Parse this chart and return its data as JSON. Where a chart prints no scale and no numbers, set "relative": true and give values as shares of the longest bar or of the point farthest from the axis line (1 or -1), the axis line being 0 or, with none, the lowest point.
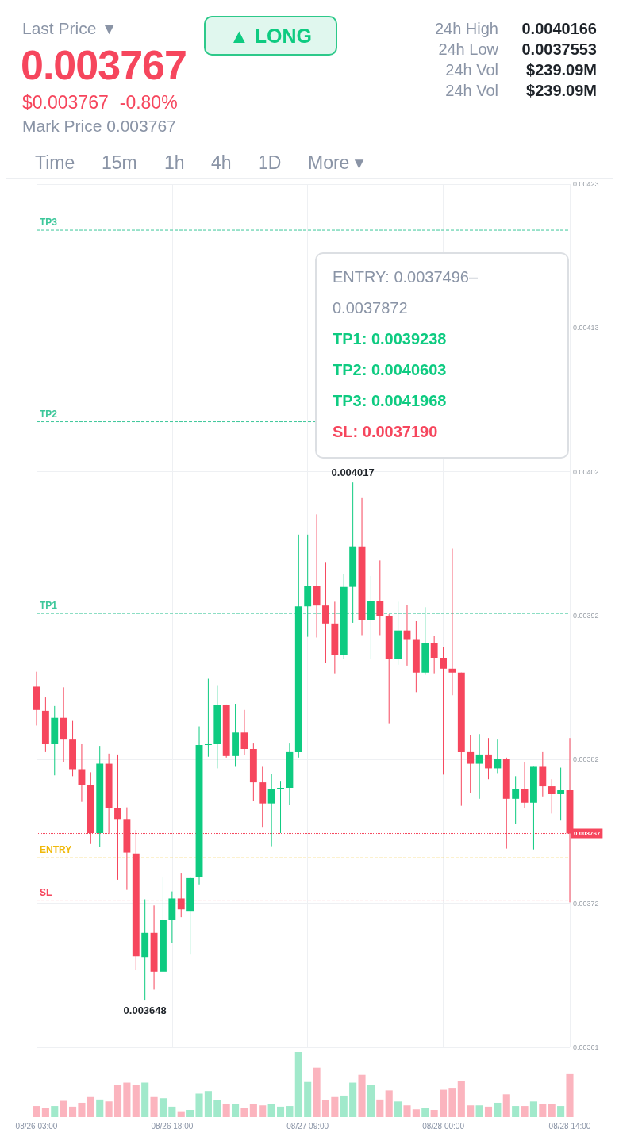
{
  "chart_data": [
    {
      "type": "other",
      "annotations": [
        "Last Price ▼",
        "0.003767",
        "$0.003767",
        "-0.80%",
        "Mark Price 0.003767",
        "▲ LONG",
        "24h High",
        "0.0040166",
        "24h Low",
        "0.0037553",
        "24h Vol",
        "$239.09M",
        "24h Vol",
        "$239.09M",
        "Time",
        "15m",
        "1h",
        "4h",
        "1D",
        "More ▾"
      ]
    },
    {
      "type": "candlestick",
      "categories": [
        "08/26 03:00",
        null,
        null,
        null,
        null,
        null,
        null,
        null,
        null,
        null,
        null,
        null,
        null,
        null,
        null,
        "08/26 18:00",
        null,
        null,
        null,
        null,
        null,
        null,
        null,
        null,
        null,
        null,
        null,
        null,
        null,
        null,
        "08/27 09:00",
        null,
        null,
        null,
        null,
        null,
        null,
        null,
        null,
        null,
        null,
        null,
        null,
        null,
        null,
        "08/28 00:00",
        null,
        null,
        null,
        null,
        null,
        null,
        null,
        null,
        null,
        null,
        null,
        null,
        null,
        "08/28 14:00"
      ],
      "ohlc": [
        [
          0.0038716,
          0.0038822,
          0.0038439,
          0.003855
        ],
        [
          0.0038544,
          0.0038639,
          0.003825,
          0.0038306
        ],
        [
          0.0038306,
          0.0038578,
          0.0038084,
          0.0038494
        ],
        [
          0.0038494,
          0.0038711,
          0.0038178,
          0.0038339
        ],
        [
          0.0038339,
          0.0038472,
          0.0038078,
          0.0038128
        ],
        [
          0.0038128,
          0.0038306,
          0.0037895,
          0.0038017
        ],
        [
          0.0038017,
          0.0038106,
          0.0037595,
          0.0037673
        ],
        [
          0.0037673,
          0.0038294,
          0.0037573,
          0.0038167
        ],
        [
          0.0038167,
          0.0038239,
          0.0037667,
          0.003785
        ],
        [
          0.003785,
          0.0038233,
          0.003734,
          0.0037773
        ],
        [
          0.0037773,
          0.0037856,
          0.0037268,
          0.0037534
        ],
        [
          0.0037528,
          0.0037695,
          0.0036696,
          0.0036796
        ],
        [
          0.003679,
          0.0037201,
          0.003648,
          0.0036962
        ],
        [
          0.0036962,
          0.0037157,
          0.0036557,
          0.0036685
        ],
        [
          0.0036685,
          0.0037362,
          0.0036685,
          0.0037057
        ],
        [
          0.0037057,
          0.0037257,
          0.003689,
          0.0037207
        ],
        [
          0.0037207,
          0.003739,
          0.0037073,
          0.0037129
        ],
        [
          0.0037118,
          0.0037362,
          0.0036807,
          0.0037357
        ],
        [
          0.0037362,
          0.0038433,
          0.0037307,
          0.00383
        ],
        [
          0.00383,
          0.0038772,
          0.0038217,
          0.0038306
        ],
        [
          0.0038306,
          0.0038727,
          0.0038134,
          0.0038583
        ],
        [
          0.0038583,
          0.0038589,
          0.0038211,
          0.0038222
        ],
        [
          0.0038222,
          0.0038594,
          0.0038145,
          0.0038389
        ],
        [
          0.0038389,
          0.003855,
          0.0038228,
          0.0038272
        ],
        [
          0.0038272,
          0.0038311,
          0.00379,
          0.0038034
        ],
        [
          0.0038034,
          0.0038145,
          0.0037717,
          0.0037884
        ],
        [
          0.0037884,
          0.0038095,
          0.0037579,
          0.0037984
        ],
        [
          0.0037984,
          0.0038045,
          0.0037673,
          0.0037995
        ],
        [
          0.0037995,
          0.0038311,
          0.0037873,
          0.003825
        ],
        [
          0.003825,
          0.0039799,
          0.0038211,
          0.0039288
        ],
        [
          0.0039288,
          0.0039799,
          0.0039071,
          0.0039432
        ],
        [
          0.0039432,
          0.0039943,
          0.0039066,
          0.0039294
        ],
        [
          0.0039294,
          0.0039604,
          0.0038883,
          0.0039166
        ],
        [
          0.0039166,
          0.0039321,
          0.0038811,
          0.0038944
        ],
        [
          0.0038944,
          0.0039516,
          0.0038911,
          0.0039427
        ],
        [
          0.0039427,
          0.004017,
          0.0039171,
          0.0039715
        ],
        [
          0.0039715,
          0.0040059,
          0.0039083,
          0.0039188
        ],
        [
          0.0039188,
          0.0039504,
          0.0038916,
          0.0039327
        ],
        [
          0.0039327,
          0.0039615,
          0.0039083,
          0.0039216
        ],
        [
          0.0039216,
          0.0039232,
          0.0038455,
          0.0038916
        ],
        [
          0.0038916,
          0.0039321,
          0.0038872,
          0.0039116
        ],
        [
          0.0039116,
          0.0039299,
          0.0038866,
          0.0039049
        ],
        [
          0.0039049,
          0.0039182,
          0.0038677,
          0.0038816
        ],
        [
          0.0038816,
          0.0039282,
          0.00388,
          0.0039027
        ],
        [
          0.0039027,
          0.0039077,
          0.0038811,
          0.0038922
        ],
        [
          0.0038922,
          0.0038999,
          0.0038089,
          0.0038844
        ],
        [
          0.0038844,
          0.0039699,
          0.0038655,
          0.0038816
        ],
        [
          0.0038816,
          0.0038816,
          0.0037867,
          0.003825
        ],
        [
          0.003825,
          0.0038372,
          0.0037956,
          0.0038167
        ],
        [
          0.0038167,
          0.0038378,
          0.0037917,
          0.0038233
        ],
        [
          0.0038233,
          0.003835,
          0.0038056,
          0.0038134
        ],
        [
          0.0038134,
          0.0038339,
          0.00381,
          0.00382
        ],
        [
          0.00382,
          0.0038211,
          0.0037562,
          0.0037917
        ],
        [
          0.0037917,
          0.0038078,
          0.0037739,
          0.0037984
        ],
        [
          0.0037984,
          0.0038178,
          0.003785,
          0.0037889
        ],
        [
          0.0037889,
          0.0038145,
          0.0037556,
          0.0038145
        ],
        [
          0.0038145,
          0.003825,
          0.0037934,
          0.0038006
        ],
        [
          0.0038006,
          0.0038056,
          0.0037812,
          0.003795
        ],
        [
          0.003795,
          0.0038139,
          0.0037762,
          0.0037978
        ],
        [
          0.0037978,
          0.003835,
          0.0037179,
          0.003767
        ]
      ],
      "colors": [
        "#f6465d",
        "#f6465d",
        "#0ecb81",
        "#f6465d",
        "#f6465d",
        "#f6465d",
        "#f6465d",
        "#0ecb81",
        "#f6465d",
        "#f6465d",
        "#f6465d",
        "#f6465d",
        "#0ecb81",
        "#f6465d",
        "#0ecb81",
        "#0ecb81",
        "#f6465d",
        "#0ecb81",
        "#0ecb81",
        "#0ecb81",
        "#0ecb81",
        "#f6465d",
        "#0ecb81",
        "#f6465d",
        "#f6465d",
        "#f6465d",
        "#0ecb81",
        "#0ecb81",
        "#0ecb81",
        "#0ecb81",
        "#0ecb81",
        "#f6465d",
        "#f6465d",
        "#f6465d",
        "#0ecb81",
        "#0ecb81",
        "#f6465d",
        "#0ecb81",
        "#f6465d",
        "#f6465d",
        "#0ecb81",
        "#f6465d",
        "#f6465d",
        "#0ecb81",
        "#f6465d",
        "#f6465d",
        "#f6465d",
        "#f6465d",
        "#f6465d",
        "#0ecb81",
        "#f6465d",
        "#0ecb81",
        "#f6465d",
        "#0ecb81",
        "#f6465d",
        "#0ecb81",
        "#f6465d",
        "#f6465d",
        "#0ecb81",
        "#f6465d"
      ],
      "ylim": [
        0.0036147,
        0.0042296
      ],
      "yticks": [
        {
          "value": 0.0036147,
          "label": "0.00361"
        },
        {
          "value": 0.0037172,
          "label": "0.00372"
        },
        {
          "value": 0.0038197,
          "label": "0.00382"
        },
        {
          "value": 0.0039221,
          "label": "0.00392"
        },
        {
          "value": 0.0040246,
          "label": "0.00402"
        },
        {
          "value": 0.0041271,
          "label": "0.00413"
        },
        {
          "value": 0.0042296,
          "label": "0.00423"
        }
      ],
      "ref_lines": [
        {
          "axis": "y",
          "value": 0.0041968,
          "label": "TP3",
          "color": "#3cc79a",
          "line_style": "dashed"
        },
        {
          "axis": "y",
          "value": 0.0040603,
          "label": "TP2",
          "color": "#3cc79a",
          "line_style": "dashed"
        },
        {
          "axis": "y",
          "value": 0.0039238,
          "label": "TP1",
          "color": "#3cc79a",
          "line_style": "dashed"
        },
        {
          "axis": "y",
          "value": 0.003767,
          "label": "0.003767",
          "color": "#f6465d",
          "line_style": "dotted"
        },
        {
          "axis": "y",
          "value": 0.0037496,
          "label": "ENTRY",
          "color": "#f0b90b",
          "line_style": "dashed"
        },
        {
          "axis": "y",
          "value": 0.003719,
          "label": "SL",
          "color": "#f6465d",
          "line_style": "dashed"
        }
      ],
      "annotations": [
        "ENTRY: 0.0037496–0.0037872",
        "TP1: 0.0039238",
        "TP2: 0.0040603",
        "TP3: 0.0041968",
        "SL: 0.0037190",
        "0.004017",
        "0.003648"
      ],
      "grid": true
    },
    {
      "type": "bar",
      "relative": true,
      "categories": [
        null,
        null,
        null,
        null,
        null,
        null,
        null,
        null,
        null,
        null,
        null,
        null,
        null,
        null,
        null,
        null,
        null,
        null,
        null,
        null,
        null,
        null,
        null,
        null,
        null,
        null,
        null,
        null,
        null,
        null,
        null,
        null,
        null,
        null,
        null,
        null,
        null,
        null,
        null,
        null,
        null,
        null,
        null,
        null,
        null,
        null,
        null,
        null,
        null,
        null,
        null,
        null,
        null,
        null,
        null,
        null,
        null,
        null,
        null,
        null
      ],
      "values": [
        0.17,
        0.14,
        0.17,
        0.25,
        0.16,
        0.22,
        0.32,
        0.27,
        0.24,
        0.5,
        0.53,
        0.5,
        0.53,
        0.32,
        0.29,
        0.16,
        0.09,
        0.11,
        0.36,
        0.4,
        0.26,
        0.2,
        0.2,
        0.14,
        0.2,
        0.18,
        0.2,
        0.16,
        0.17,
        1,
        0.54,
        0.76,
        0.26,
        0.32,
        0.33,
        0.53,
        0.65,
        0.49,
        0.27,
        0.41,
        0.24,
        0.18,
        0.12,
        0.14,
        0.11,
        0.42,
        0.45,
        0.55,
        0.18,
        0.18,
        0.16,
        0.22,
        0.35,
        0.17,
        0.17,
        0.24,
        0.2,
        0.2,
        0.17,
        0.66
      ],
      "colors": [
        "#fbb4be",
        "#fbb4be",
        "#a1e9cb",
        "#fbb4be",
        "#fbb4be",
        "#fbb4be",
        "#fbb4be",
        "#a1e9cb",
        "#fbb4be",
        "#fbb4be",
        "#fbb4be",
        "#fbb4be",
        "#a1e9cb",
        "#fbb4be",
        "#a1e9cb",
        "#a1e9cb",
        "#fbb4be",
        "#a1e9cb",
        "#a1e9cb",
        "#a1e9cb",
        "#a1e9cb",
        "#fbb4be",
        "#a1e9cb",
        "#fbb4be",
        "#fbb4be",
        "#fbb4be",
        "#a1e9cb",
        "#a1e9cb",
        "#a1e9cb",
        "#a1e9cb",
        "#a1e9cb",
        "#fbb4be",
        "#fbb4be",
        "#fbb4be",
        "#a1e9cb",
        "#a1e9cb",
        "#fbb4be",
        "#a1e9cb",
        "#fbb4be",
        "#fbb4be",
        "#a1e9cb",
        "#fbb4be",
        "#fbb4be",
        "#a1e9cb",
        "#fbb4be",
        "#fbb4be",
        "#fbb4be",
        "#fbb4be",
        "#fbb4be",
        "#a1e9cb",
        "#fbb4be",
        "#a1e9cb",
        "#fbb4be",
        "#a1e9cb",
        "#fbb4be",
        "#a1e9cb",
        "#fbb4be",
        "#fbb4be",
        "#a1e9cb",
        "#fbb4be"
      ],
      "grid": "x",
      "tick_labels": false
    }
  ]
}
